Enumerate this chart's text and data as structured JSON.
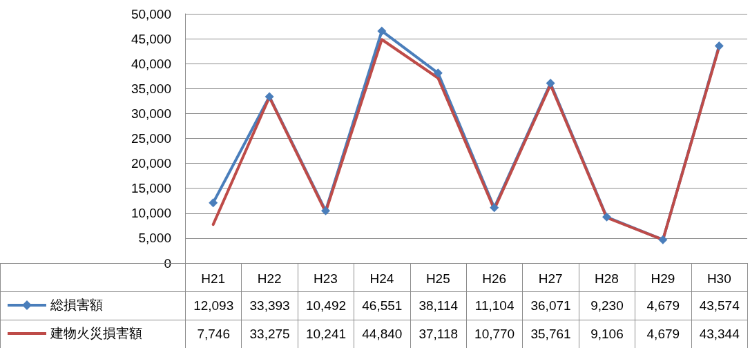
{
  "chart_data": {
    "type": "line",
    "categories": [
      "H21",
      "H22",
      "H23",
      "H24",
      "H25",
      "H26",
      "H27",
      "H28",
      "H29",
      "H30"
    ],
    "series": [
      {
        "name": "総損害額",
        "color": "#4a7ebb",
        "marker": "diamond",
        "values": [
          12093,
          33393,
          10492,
          46551,
          38114,
          11104,
          36071,
          9230,
          4679,
          43574
        ],
        "value_labels": [
          "12,093",
          "33,393",
          "10,492",
          "46,551",
          "38,114",
          "11,104",
          "36,071",
          "9,230",
          "4,679",
          "43,574"
        ]
      },
      {
        "name": "建物火災損害額",
        "color": "#be4b48",
        "marker": "none",
        "values": [
          7746,
          33275,
          10241,
          44840,
          37118,
          10770,
          35761,
          9106,
          4679,
          43344
        ],
        "value_labels": [
          "7,746",
          "33,275",
          "10,241",
          "44,840",
          "37,118",
          "10,770",
          "35,761",
          "9,106",
          "4,679",
          "43,344"
        ]
      }
    ],
    "ylim": [
      0,
      50000
    ],
    "yticks": [
      0,
      {
        "value": 5000,
        "label": "5,000"
      },
      {
        "value": 10000,
        "label": "10,000"
      },
      {
        "value": 15000,
        "label": "15,000"
      },
      {
        "value": 20000,
        "label": "20,000"
      },
      {
        "value": 25000,
        "label": "25,000"
      },
      {
        "value": 30000,
        "label": "30,000"
      },
      {
        "value": 35000,
        "label": "35,000"
      },
      {
        "value": 40000,
        "label": "40,000"
      },
      {
        "value": 45000,
        "label": "45,000"
      },
      {
        "value": 50000,
        "label": "50,000"
      }
    ],
    "grid": "y",
    "legend": "bottom left",
    "line_style": "solid"
  }
}
